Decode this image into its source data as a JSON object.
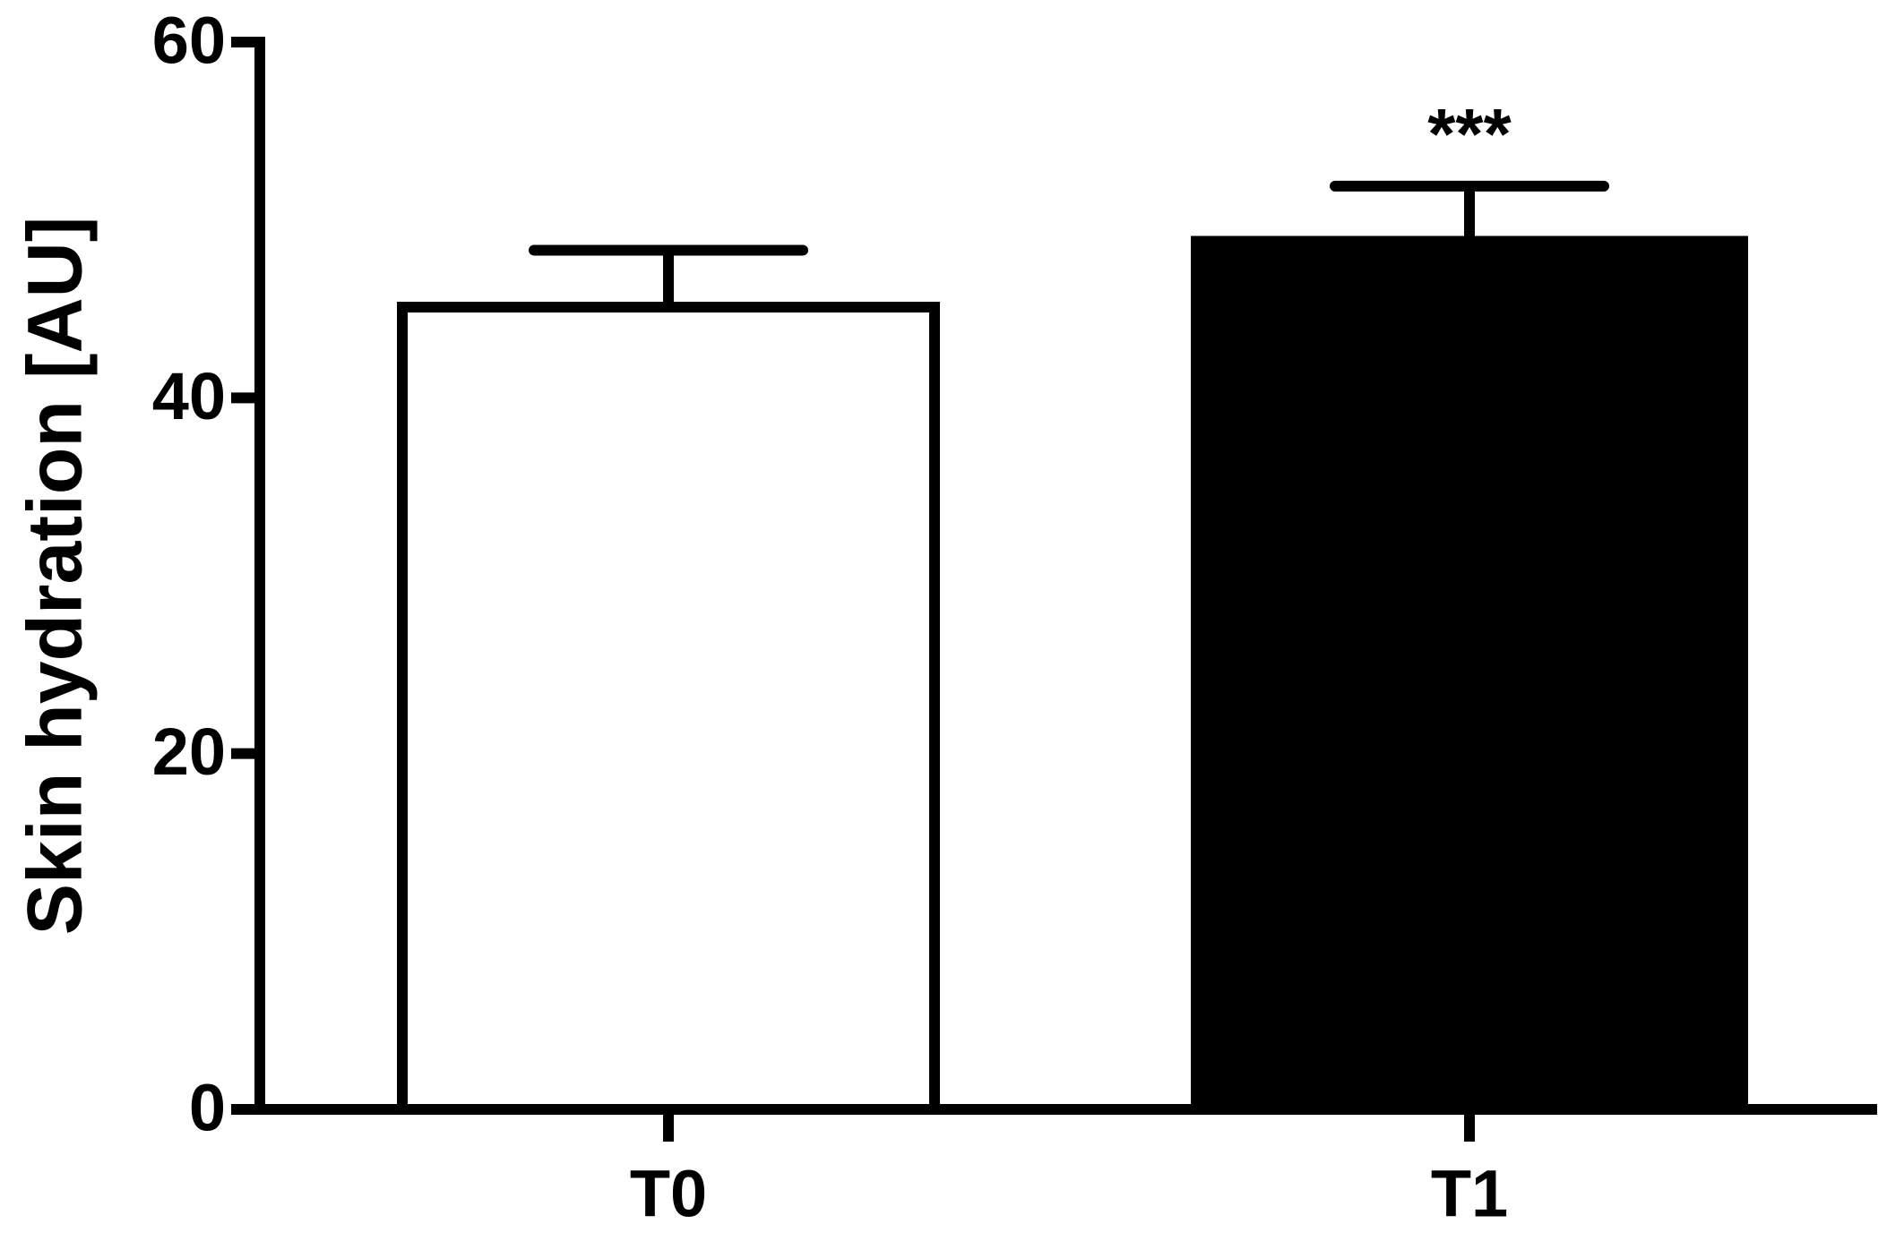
{
  "chart_data": {
    "type": "bar",
    "y_label": "Skin hydration [AU]",
    "categories": [
      "T0",
      "T1"
    ],
    "values": [
      45.1,
      48.8
    ],
    "errors": [
      3.2,
      3.1
    ],
    "colors": [
      "#ffffff",
      "#000000"
    ],
    "significance": [
      null,
      "***"
    ],
    "ylim": [
      0,
      60
    ],
    "yticks": [
      0,
      20,
      40,
      60
    ],
    "grid": false
  }
}
